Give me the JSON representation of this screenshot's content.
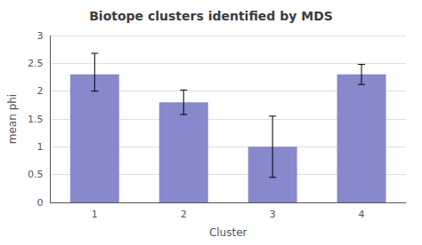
{
  "chart_data": {
    "type": "bar",
    "title": "Biotope clusters identified by MDS",
    "xlabel": "Cluster",
    "ylabel": "mean phi",
    "categories": [
      1,
      2,
      3,
      4
    ],
    "values": [
      2.3,
      1.8,
      1.0,
      2.3
    ],
    "errors_upper": [
      0.38,
      0.22,
      0.55,
      0.18
    ],
    "errors_lower": [
      0.3,
      0.22,
      0.55,
      0.18
    ],
    "color": "#8888CC",
    "ylim": [
      0,
      3
    ],
    "yticks": [
      0,
      0.5,
      1,
      1.5,
      2,
      2.5,
      3
    ],
    "grid": true
  }
}
